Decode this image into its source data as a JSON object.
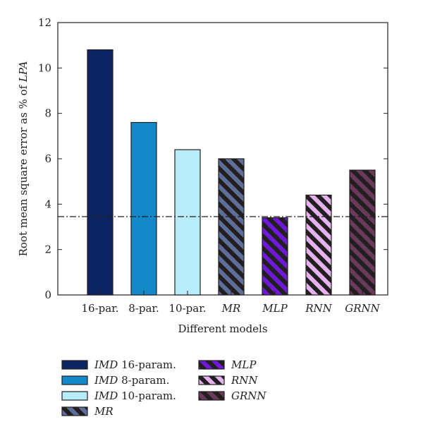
{
  "chart_data": {
    "type": "bar",
    "xlabel": "Different models",
    "ylabel_prefix": "Root mean square error as % of ",
    "ylabel_italic": "LPA",
    "ylim": [
      0,
      12
    ],
    "yticks": [
      "0",
      "2",
      "4",
      "6",
      "8",
      "10",
      "12"
    ],
    "grid": false,
    "reference_line": {
      "value": 3.45,
      "style": "dash-dot"
    },
    "categories": [
      {
        "label": "16-par.",
        "italic": false
      },
      {
        "label": "8-par.",
        "italic": false
      },
      {
        "label": "10-par.",
        "italic": false
      },
      {
        "label": "MR",
        "italic": true
      },
      {
        "label": "MLP",
        "italic": true
      },
      {
        "label": "RNN",
        "italic": true
      },
      {
        "label": "GRNN",
        "italic": true
      }
    ],
    "values": [
      10.8,
      7.6,
      6.4,
      6.0,
      3.4,
      4.4,
      5.5
    ],
    "bar_colors": [
      "#0c2461",
      "#1588c9",
      "#b8ecfb",
      "#5d6f99",
      "#6e18d8",
      "#e3b2ef",
      "#6a3a5c"
    ],
    "bar_hatched": [
      false,
      false,
      false,
      true,
      true,
      true,
      true
    ],
    "legend_placement": "bottom-left",
    "legend": [
      {
        "prefix": "IMD",
        "suffix": " 16-param."
      },
      {
        "prefix": "IMD",
        "suffix": " 8-param."
      },
      {
        "prefix": "IMD",
        "suffix": " 10-param."
      },
      {
        "prefix": "MR",
        "suffix": ""
      },
      {
        "prefix": "MLP",
        "suffix": ""
      },
      {
        "prefix": "RNN",
        "suffix": ""
      },
      {
        "prefix": "GRNN",
        "suffix": ""
      }
    ]
  }
}
